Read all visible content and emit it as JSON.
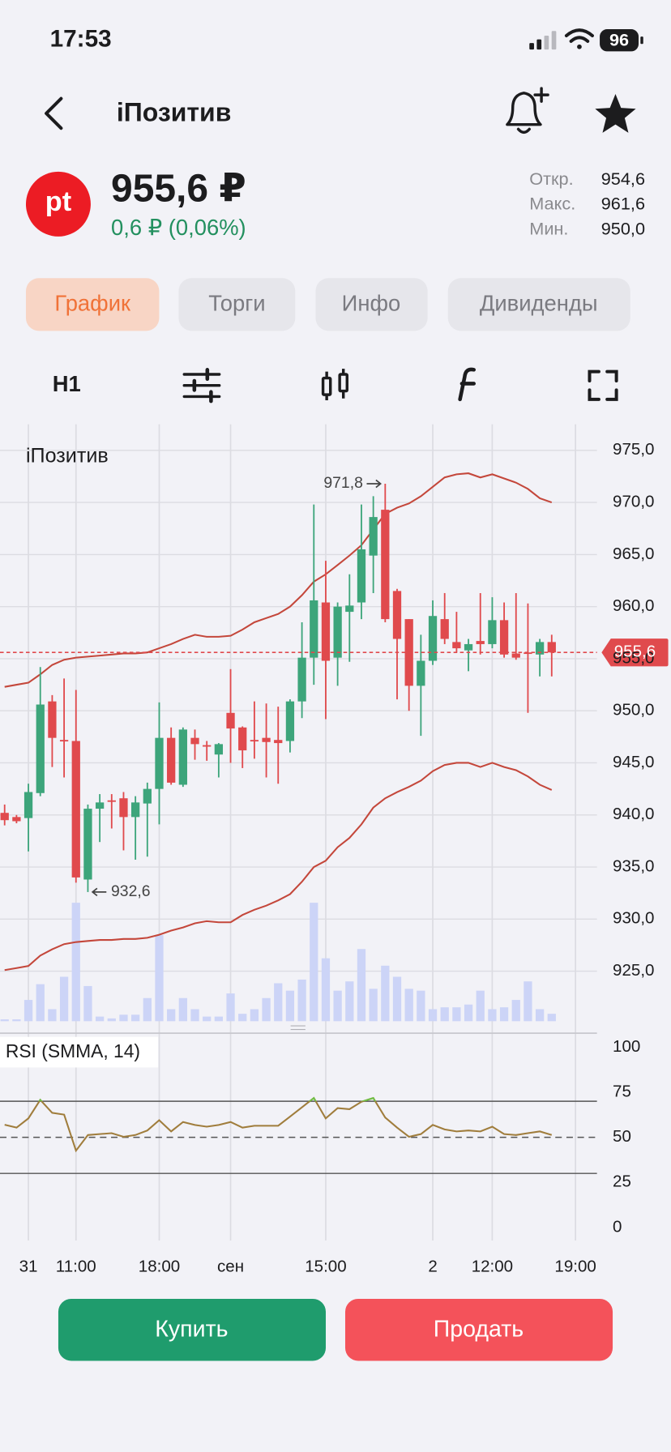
{
  "status_bar": {
    "time": "17:53",
    "battery": "96"
  },
  "header": {
    "title": "iПозитив"
  },
  "quote": {
    "logo": "pt",
    "price": "955,6 ₽",
    "change": "0,6 ₽ (0,06%)",
    "stats": [
      {
        "label": "Откр.",
        "value": "954,6"
      },
      {
        "label": "Макс.",
        "value": "961,6"
      },
      {
        "label": "Мин.",
        "value": "950,0"
      }
    ]
  },
  "tabs": [
    "График",
    "Торги",
    "Инфо",
    "Дивиденды"
  ],
  "toolbar": {
    "interval": "H1"
  },
  "chart_data": [
    {
      "type": "candlestick",
      "title": "iПозитив",
      "categories": [
        null,
        null,
        "31",
        null,
        null,
        null,
        "11:00",
        null,
        null,
        null,
        null,
        null,
        null,
        "18:00",
        null,
        null,
        null,
        null,
        null,
        "сен",
        null,
        null,
        null,
        null,
        null,
        null,
        null,
        "15:00",
        null,
        null,
        null,
        null,
        null,
        null,
        null,
        null,
        "2",
        null,
        null,
        null,
        null,
        "12:00",
        null,
        null,
        null,
        null,
        null,
        null,
        "19:00"
      ],
      "open": [
        940.2,
        939.8,
        939.7,
        942.1,
        950.9,
        947.2,
        947.1,
        933.8,
        940.6,
        941.4,
        941.6,
        939.8,
        941.1,
        942.5,
        947.4,
        942.9,
        947.4,
        946.7,
        945.8,
        949.8,
        948.4,
        947.2,
        947.4,
        947.2,
        947.1,
        950.9,
        955.1,
        960.4,
        955.1,
        959.5,
        960.4,
        964.9,
        969.3,
        961.5,
        958.8,
        952.4,
        954.8,
        958.8,
        956.6,
        955.8,
        956.7,
        956.4,
        958.7,
        955.5,
        955.6,
        955.4,
        956.6,
        null,
        null
      ],
      "high": [
        941,
        940,
        943,
        954.2,
        951.5,
        953.1,
        952,
        941,
        942,
        942,
        942.2,
        941.8,
        943.1,
        950.8,
        948.4,
        948.4,
        948.2,
        947.1,
        946.9,
        954,
        948.5,
        950.9,
        950.7,
        950.4,
        951.1,
        958.5,
        969.8,
        964.4,
        960.4,
        963.1,
        969.8,
        970.6,
        971.8,
        961.7,
        958.8,
        957.3,
        960.6,
        961.3,
        959.5,
        956.9,
        961.3,
        960.9,
        960.4,
        961.3,
        960.3,
        956.9,
        957.3,
        null,
        null
      ],
      "low": [
        939,
        939.2,
        936.5,
        941.8,
        944.6,
        943.6,
        933.5,
        932.6,
        937.4,
        938.7,
        936.6,
        935.7,
        936,
        939.1,
        942.9,
        942.7,
        945.3,
        945.2,
        943.6,
        945,
        944.5,
        945.4,
        943.6,
        943,
        946,
        949.3,
        952.5,
        949.2,
        952.4,
        954.7,
        958.8,
        961.3,
        958.5,
        951.1,
        950,
        947.6,
        954.4,
        956.4,
        955.6,
        953.8,
        955.4,
        956,
        955.1,
        954.9,
        949.8,
        953.3,
        953.3,
        null,
        null
      ],
      "close": [
        939.5,
        939.4,
        942.2,
        950.6,
        947.4,
        947.1,
        934,
        940.6,
        941.2,
        941.3,
        939.8,
        941.2,
        942.5,
        947.4,
        943.1,
        948.2,
        946.8,
        946.6,
        946.8,
        948.3,
        946.2,
        947.1,
        947,
        946.9,
        950.9,
        955.1,
        960.6,
        954.8,
        960,
        960.1,
        965.5,
        968.6,
        958.8,
        956.9,
        952.4,
        954.8,
        959.1,
        956.9,
        956,
        956.4,
        956.4,
        958.7,
        955.4,
        955.1,
        955.5,
        956.6,
        955.6,
        null,
        null
      ],
      "volume": [
        2,
        2,
        23,
        40,
        13,
        48,
        128,
        38,
        5,
        3,
        7,
        7,
        25,
        93,
        13,
        25,
        13,
        5,
        5,
        30,
        8,
        13,
        25,
        41,
        33,
        45,
        128,
        68,
        33,
        43,
        78,
        35,
        60,
        48,
        35,
        33,
        13,
        15,
        15,
        18,
        33,
        13,
        15,
        23,
        43,
        13,
        8,
        null,
        null
      ],
      "upper_band": {
        "color": "#c4473b",
        "values": [
          952.3,
          952.5,
          952.7,
          953.5,
          954.4,
          954.9,
          955.1,
          955.2,
          955.3,
          955.4,
          955.5,
          955.5,
          955.6,
          956,
          956.4,
          956.9,
          957.3,
          957.1,
          957.1,
          957.2,
          957.8,
          958.5,
          958.9,
          959.3,
          960,
          961.1,
          962.4,
          963.1,
          964,
          964.9,
          965.9,
          967.4,
          968.9,
          969.5,
          969.9,
          970.6,
          971.5,
          972.4,
          972.7,
          972.8,
          972.4,
          972.7,
          972.3,
          971.9,
          971.3,
          970.4,
          970,
          null,
          null
        ]
      },
      "lower_band": {
        "color": "#c4473b",
        "values": [
          925.1,
          925.3,
          925.5,
          926.5,
          927.1,
          927.6,
          927.8,
          927.9,
          928,
          928,
          928.1,
          928.1,
          928.2,
          928.5,
          928.9,
          929.2,
          929.6,
          929.8,
          929.7,
          929.7,
          930.4,
          930.9,
          931.3,
          931.8,
          932.4,
          933.6,
          935,
          935.6,
          936.9,
          937.8,
          939.1,
          940.7,
          941.6,
          942.2,
          942.7,
          943.3,
          944.2,
          944.8,
          945,
          945,
          944.6,
          945,
          944.6,
          944.3,
          943.7,
          942.9,
          942.4,
          null,
          null
        ]
      },
      "up_color": "#3da57b",
      "down_color": "#e04a4d",
      "volume_color": "#ccd4f7",
      "ylim": [
        920.2,
        977.5
      ],
      "yticks": [
        {
          "value": 925,
          "label": "925,0"
        },
        {
          "value": 930,
          "label": "930,0"
        },
        {
          "value": 935,
          "label": "935,0"
        },
        {
          "value": 940,
          "label": "940,0"
        },
        {
          "value": 945,
          "label": "945,0"
        },
        {
          "value": 950,
          "label": "950,0"
        },
        {
          "value": 955,
          "label": "955,0"
        },
        {
          "value": 960,
          "label": "960,0"
        },
        {
          "value": 965,
          "label": "965,0"
        },
        {
          "value": 970,
          "label": "970,0"
        },
        {
          "value": 975,
          "label": "975,0"
        }
      ],
      "last_price": {
        "value": 955.6,
        "label": "955,6"
      },
      "high_marker": {
        "value": 971.8,
        "label": "971,8"
      },
      "low_marker": {
        "value": 932.6,
        "label": "932,6"
      },
      "grid": true
    },
    {
      "type": "line",
      "title": "RSI (SMMA, 14)",
      "values": [
        57,
        55.4,
        60.5,
        70.8,
        63.6,
        62.6,
        42.6,
        51.3,
        51.8,
        52.3,
        50.3,
        51.3,
        53.8,
        59.5,
        53.3,
        58.5,
        56.9,
        55.9,
        56.9,
        58.5,
        55.4,
        56.4,
        56.4,
        56.4,
        61.5,
        66.7,
        71.8,
        60.5,
        66.2,
        65.6,
        69.7,
        71.8,
        61,
        55.4,
        50.3,
        51.8,
        56.9,
        54.4,
        53.3,
        53.8,
        53.3,
        55.9,
        51.8,
        51.3,
        52.3,
        53.3,
        51.3,
        null,
        null
      ],
      "color": "#a07d3c",
      "overbought_color": "#6fbf45",
      "levels": [
        70,
        30
      ],
      "midline": 50,
      "ylim": [
        -7.2,
        106.7
      ],
      "yticks": [
        0,
        25,
        50,
        75,
        100
      ]
    }
  ],
  "buttons": {
    "buy": "Купить",
    "sell": "Продать"
  }
}
